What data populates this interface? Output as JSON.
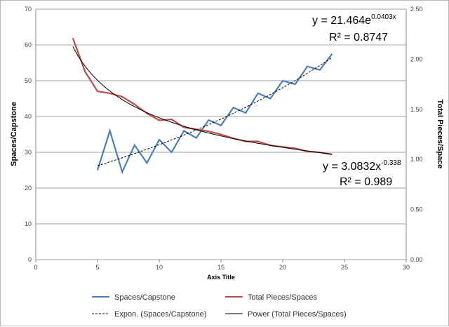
{
  "chart_data": {
    "type": "line",
    "xlabel": "Axis Title",
    "ylabel": "Spaces/Capstone",
    "y2label": "Total Pieces/Space",
    "xlim": [
      0,
      30
    ],
    "xticks": [
      0,
      5,
      10,
      15,
      20,
      25,
      30
    ],
    "ylim": [
      0,
      70
    ],
    "yticks": [
      0,
      10,
      20,
      30,
      40,
      50,
      60,
      70
    ],
    "y2lim": [
      0,
      2.5
    ],
    "y2ticks": [
      "0.00",
      "0.50",
      "1.00",
      "1.50",
      "2.00",
      "2.50"
    ],
    "grid": "horizontal",
    "legend_placement": "bottom",
    "series": [
      {
        "name": "Spaces/Capstone",
        "axis": "left",
        "color": "#4a7ebb",
        "x": [
          5,
          6,
          7,
          8,
          9,
          10,
          11,
          12,
          13,
          14,
          15,
          16,
          17,
          18,
          19,
          20,
          21,
          22,
          23,
          24
        ],
        "y": [
          25,
          36,
          24.5,
          32,
          27,
          33.5,
          30,
          36,
          34,
          39,
          37.5,
          42.5,
          41,
          46.5,
          45,
          50,
          49,
          54,
          53,
          57.5
        ]
      },
      {
        "name": "Total Pieces/Spaces",
        "axis": "right",
        "color": "#be4b48",
        "x": [
          3,
          4,
          5,
          6,
          7,
          8,
          9,
          10,
          11,
          12,
          13,
          14,
          15,
          16,
          17,
          18,
          19,
          20,
          21,
          22,
          23,
          24
        ],
        "y": [
          2.21,
          1.875,
          1.68,
          1.66,
          1.625,
          1.55,
          1.46,
          1.39,
          1.4,
          1.32,
          1.3,
          1.28,
          1.25,
          1.21,
          1.18,
          1.18,
          1.14,
          1.125,
          1.11,
          1.08,
          1.07,
          1.05
        ]
      }
    ],
    "trendlines": [
      {
        "name": "Expon. (Spaces/Capstone)",
        "type": "exponential",
        "a": 21.464,
        "b": 0.0403,
        "axis": "left",
        "x_range": [
          5,
          24
        ],
        "color": "#000000",
        "style": "dashed",
        "equation_base": "y = 21.464e",
        "equation_exp": "0.0403x",
        "r2_label": "R² = 0.8747"
      },
      {
        "name": "Power (Total Pieces/Spaces)",
        "type": "power",
        "a": 3.0832,
        "b": -0.338,
        "axis": "right",
        "x_range": [
          3,
          24
        ],
        "color": "#000000",
        "style": "solid",
        "equation_base": "y = 3.0832x",
        "equation_exp": "-0.338",
        "r2_label": "R² = 0.989"
      }
    ]
  }
}
